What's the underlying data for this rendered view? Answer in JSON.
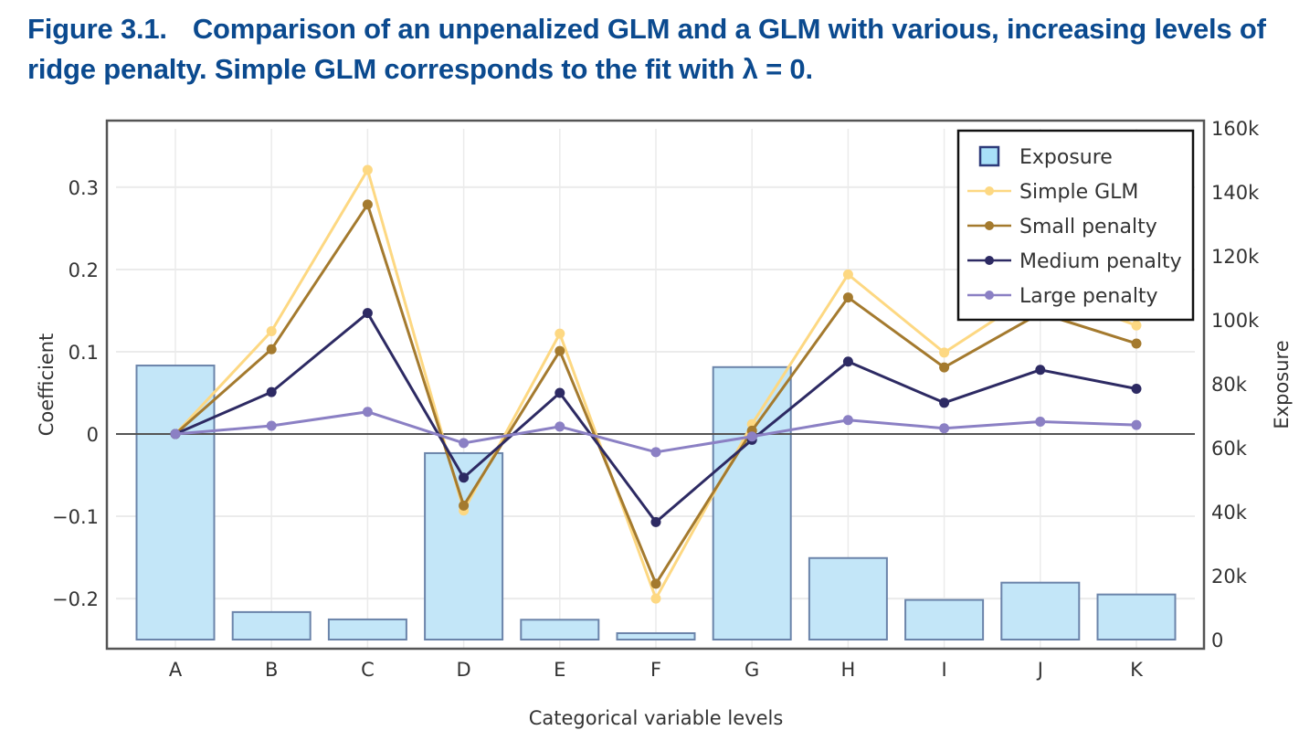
{
  "figure": {
    "number": "Figure 3.1.",
    "caption": "Comparison of an unpenalized GLM and a GLM with various, increasing levels of ridge penalty. Simple GLM corresponds to the fit with λ = 0."
  },
  "colors": {
    "title": "#0B4A8F",
    "bar_fill": "#C3E6F8",
    "bar_stroke": "#6B84AA",
    "legend_swatch_fill": "#A8E0F8",
    "legend_swatch_stroke": "#2D3A7A",
    "simple_glm": "#FDD882",
    "small_penalty": "#A47A2E",
    "medium_penalty": "#2D2A63",
    "large_penalty": "#8B80C4",
    "zero_line": "#555555",
    "grid": "#EBEBEB",
    "frame": "#555555"
  },
  "chart_data": {
    "type": "bar+line",
    "title": "",
    "xlabel": "Categorical variable levels",
    "ylabel": "Coefficient",
    "y2label": "Exposure",
    "categories": [
      "A",
      "B",
      "C",
      "D",
      "E",
      "F",
      "G",
      "H",
      "I",
      "J",
      "K"
    ],
    "ylim": [
      -0.261,
      0.381
    ],
    "y_ticks": [
      -0.2,
      -0.1,
      0,
      0.1,
      0.2,
      0.3
    ],
    "y_tick_labels": [
      "−0.2",
      "−0.1",
      "0",
      "0.1",
      "0.2",
      "0.3"
    ],
    "y2lim": [
      -2860,
      162290
    ],
    "y2_ticks": [
      0,
      20000,
      40000,
      60000,
      80000,
      100000,
      120000,
      140000,
      160000
    ],
    "y2_tick_labels": [
      "0",
      "20k",
      "40k",
      "60k",
      "80k",
      "100k",
      "120k",
      "140k",
      "160k"
    ],
    "grid": true,
    "zero_line": true,
    "legend_position": "top-right",
    "bars": {
      "name": "Exposure",
      "axis": "right",
      "values": [
        85700,
        8600,
        6300,
        58300,
        6200,
        2000,
        85200,
        25500,
        12400,
        17800,
        14100
      ]
    },
    "series": [
      {
        "name": "Simple GLM",
        "color_key": "simple_glm",
        "values": [
          0,
          0.125,
          0.321,
          -0.093,
          0.122,
          -0.2,
          0.012,
          0.194,
          0.099,
          0.175,
          0.132
        ]
      },
      {
        "name": "Small penalty",
        "color_key": "small_penalty",
        "values": [
          0,
          0.103,
          0.279,
          -0.087,
          0.101,
          -0.182,
          0.004,
          0.166,
          0.081,
          0.147,
          0.11
        ]
      },
      {
        "name": "Medium penalty",
        "color_key": "medium_penalty",
        "values": [
          0,
          0.051,
          0.147,
          -0.053,
          0.05,
          -0.107,
          -0.007,
          0.088,
          0.038,
          0.078,
          0.055
        ]
      },
      {
        "name": "Large penalty",
        "color_key": "large_penalty",
        "values": [
          0,
          0.01,
          0.027,
          -0.011,
          0.009,
          -0.022,
          -0.003,
          0.017,
          0.007,
          0.015,
          0.011
        ]
      }
    ],
    "legend": [
      "Exposure",
      "Simple GLM",
      "Small penalty",
      "Medium penalty",
      "Large penalty"
    ]
  }
}
